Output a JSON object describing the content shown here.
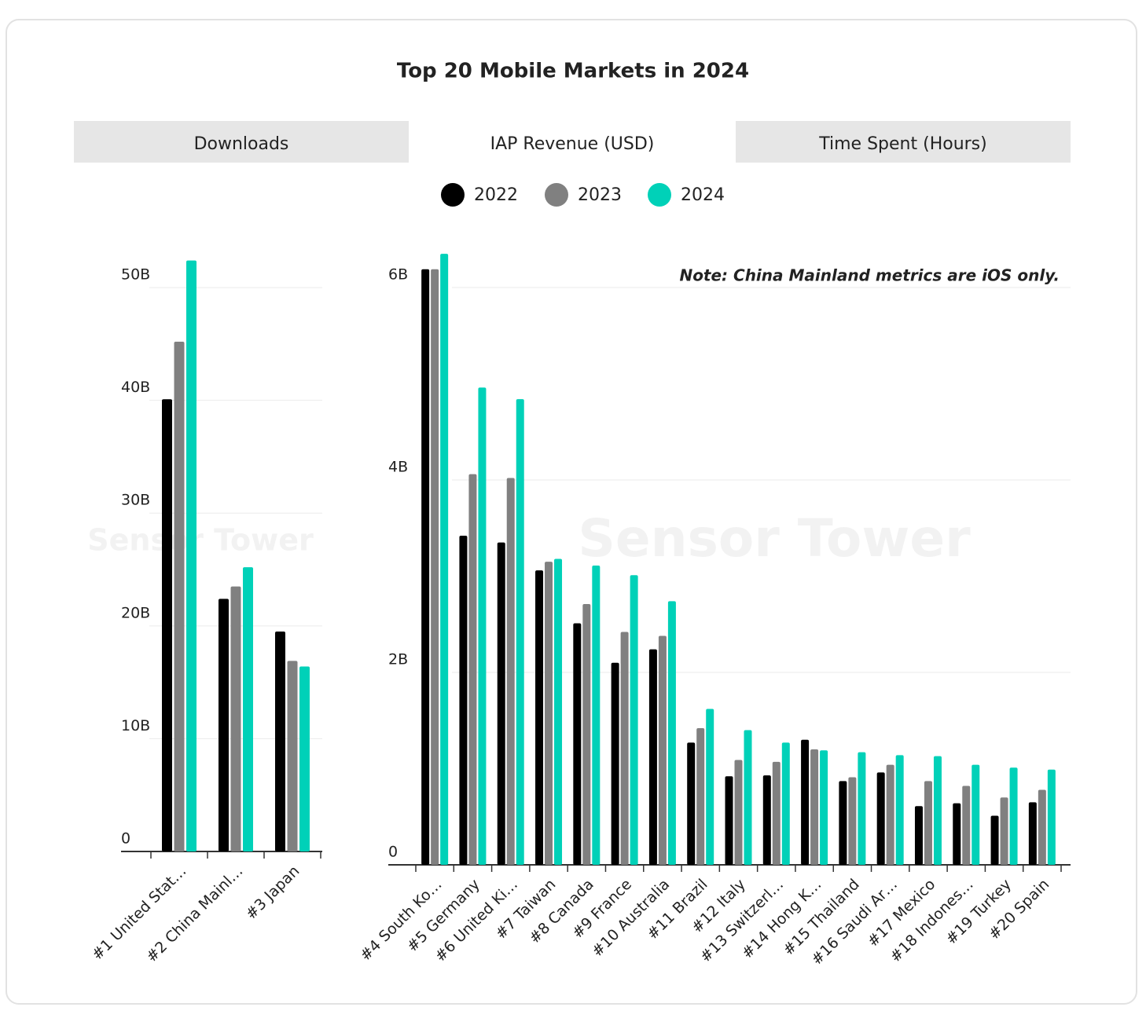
{
  "title": "Top 20 Mobile Markets in 2024",
  "tabs": [
    "Downloads",
    "IAP Revenue (USD)",
    "Time Spent (Hours)"
  ],
  "active_tab": 1,
  "watermark": "Sensor Tower",
  "chart_data": [
    {
      "type": "bar",
      "categories": [
        "#1 United Stat…",
        "#2 China Mainl…",
        "#3 Japan"
      ],
      "series": [
        {
          "name": "2022",
          "color": "#000000",
          "values": [
            40.1,
            22.4,
            19.5
          ]
        },
        {
          "name": "2023",
          "color": "#808080",
          "values": [
            45.2,
            23.5,
            16.9
          ]
        },
        {
          "name": "2024",
          "color": "#00d1b8",
          "values": [
            52.4,
            25.2,
            16.4
          ]
        }
      ],
      "ylim": [
        0,
        53
      ],
      "yticks": [
        {
          "value": 0,
          "label": "0"
        },
        {
          "value": 10,
          "label": "10B"
        },
        {
          "value": 20,
          "label": "20B"
        },
        {
          "value": 30,
          "label": "30B"
        },
        {
          "value": 40,
          "label": "40B"
        },
        {
          "value": 50,
          "label": "50B"
        }
      ],
      "grid": true
    },
    {
      "type": "bar",
      "note": "Note: China Mainland metrics are iOS only.",
      "categories": [
        "#4 South Ko…",
        "#5 Germany",
        "#6 United Ki…",
        "#7 Taiwan",
        "#8 Canada",
        "#9 France",
        "#10 Australia",
        "#11 Brazil",
        "#12 Italy",
        "#13 Switzerl…",
        "#14 Hong K…",
        "#15 Thailand",
        "#16 Saudi Ar…",
        "#17 Mexico",
        "#18 Indones…",
        "#19 Turkey",
        "#20 Spain"
      ],
      "series": [
        {
          "color": "#000000",
          "values": [
            6.19,
            3.42,
            3.35,
            3.06,
            2.51,
            2.1,
            2.24,
            1.27,
            0.92,
            0.93,
            1.3,
            0.87,
            0.96,
            0.61,
            0.64,
            0.51,
            0.65
          ]
        },
        {
          "color": "#808080",
          "values": [
            6.19,
            4.06,
            4.02,
            3.15,
            2.71,
            2.42,
            2.38,
            1.42,
            1.09,
            1.07,
            1.2,
            0.91,
            1.04,
            0.87,
            0.82,
            0.7,
            0.78
          ]
        },
        {
          "color": "#00d1b8",
          "values": [
            6.35,
            4.96,
            4.84,
            3.18,
            3.11,
            3.01,
            2.74,
            1.62,
            1.4,
            1.27,
            1.19,
            1.17,
            1.14,
            1.13,
            1.04,
            1.01,
            0.99
          ]
        }
      ],
      "ylim": [
        0,
        6.4
      ],
      "yticks": [
        {
          "value": 0,
          "label": "0"
        },
        {
          "value": 2,
          "label": "2B"
        },
        {
          "value": 4,
          "label": "4B"
        },
        {
          "value": 6,
          "label": "6B"
        }
      ],
      "grid": true
    }
  ]
}
